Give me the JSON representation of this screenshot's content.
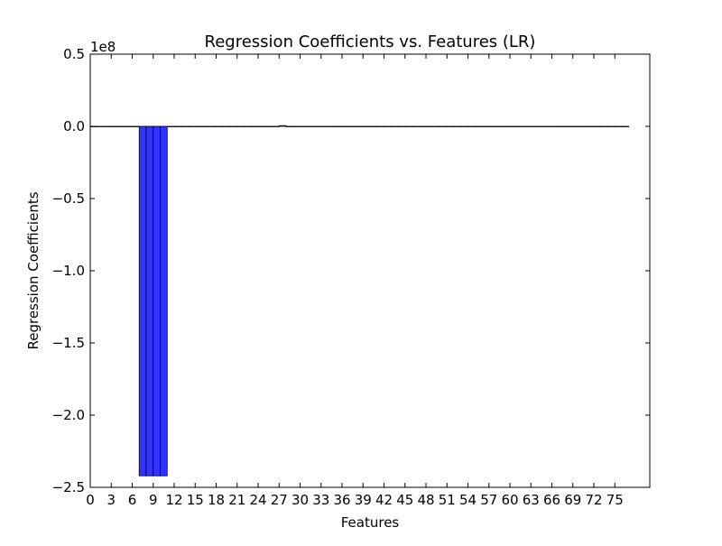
{
  "chart_data": {
    "type": "bar",
    "title": "Regression Coefficients vs. Features (LR)",
    "xlabel": "Features",
    "ylabel": "Regression Coefficients",
    "y_offset_label": "1e8",
    "xlim": [
      0,
      80
    ],
    "ylim": [
      -2.5,
      0.5
    ],
    "y_scale_factor": 100000000,
    "x_ticks": [
      0,
      3,
      6,
      9,
      12,
      15,
      18,
      21,
      24,
      27,
      30,
      33,
      36,
      39,
      42,
      45,
      48,
      51,
      54,
      57,
      60,
      63,
      66,
      69,
      72,
      75
    ],
    "y_ticks": [
      0.5,
      0.0,
      -0.5,
      -1.0,
      -1.5,
      -2.0,
      -2.5
    ],
    "y_tick_labels": [
      "0.5",
      "0.0",
      "−0.5",
      "−1.0",
      "−1.5",
      "−2.0",
      "−2.5"
    ],
    "bar_width": 1,
    "bar_color": "#3333ff",
    "grid": false,
    "values": [
      0,
      0,
      0,
      0,
      0,
      0,
      0,
      -2.42,
      -2.42,
      -2.42,
      -2.42,
      0,
      0,
      0,
      0,
      0,
      0,
      0,
      0,
      0,
      0,
      0,
      0,
      0,
      0,
      0,
      0,
      0.005,
      0,
      0,
      0,
      0,
      0,
      0,
      0,
      0,
      0,
      0,
      0,
      0,
      0,
      0,
      0,
      0,
      0,
      0,
      0,
      0,
      0,
      0,
      0,
      0,
      0,
      0,
      0,
      0,
      0,
      0,
      0,
      0,
      0,
      0,
      0,
      0,
      0,
      0,
      0,
      0,
      0,
      0,
      0,
      0,
      0,
      0,
      0,
      0,
      0
    ]
  }
}
